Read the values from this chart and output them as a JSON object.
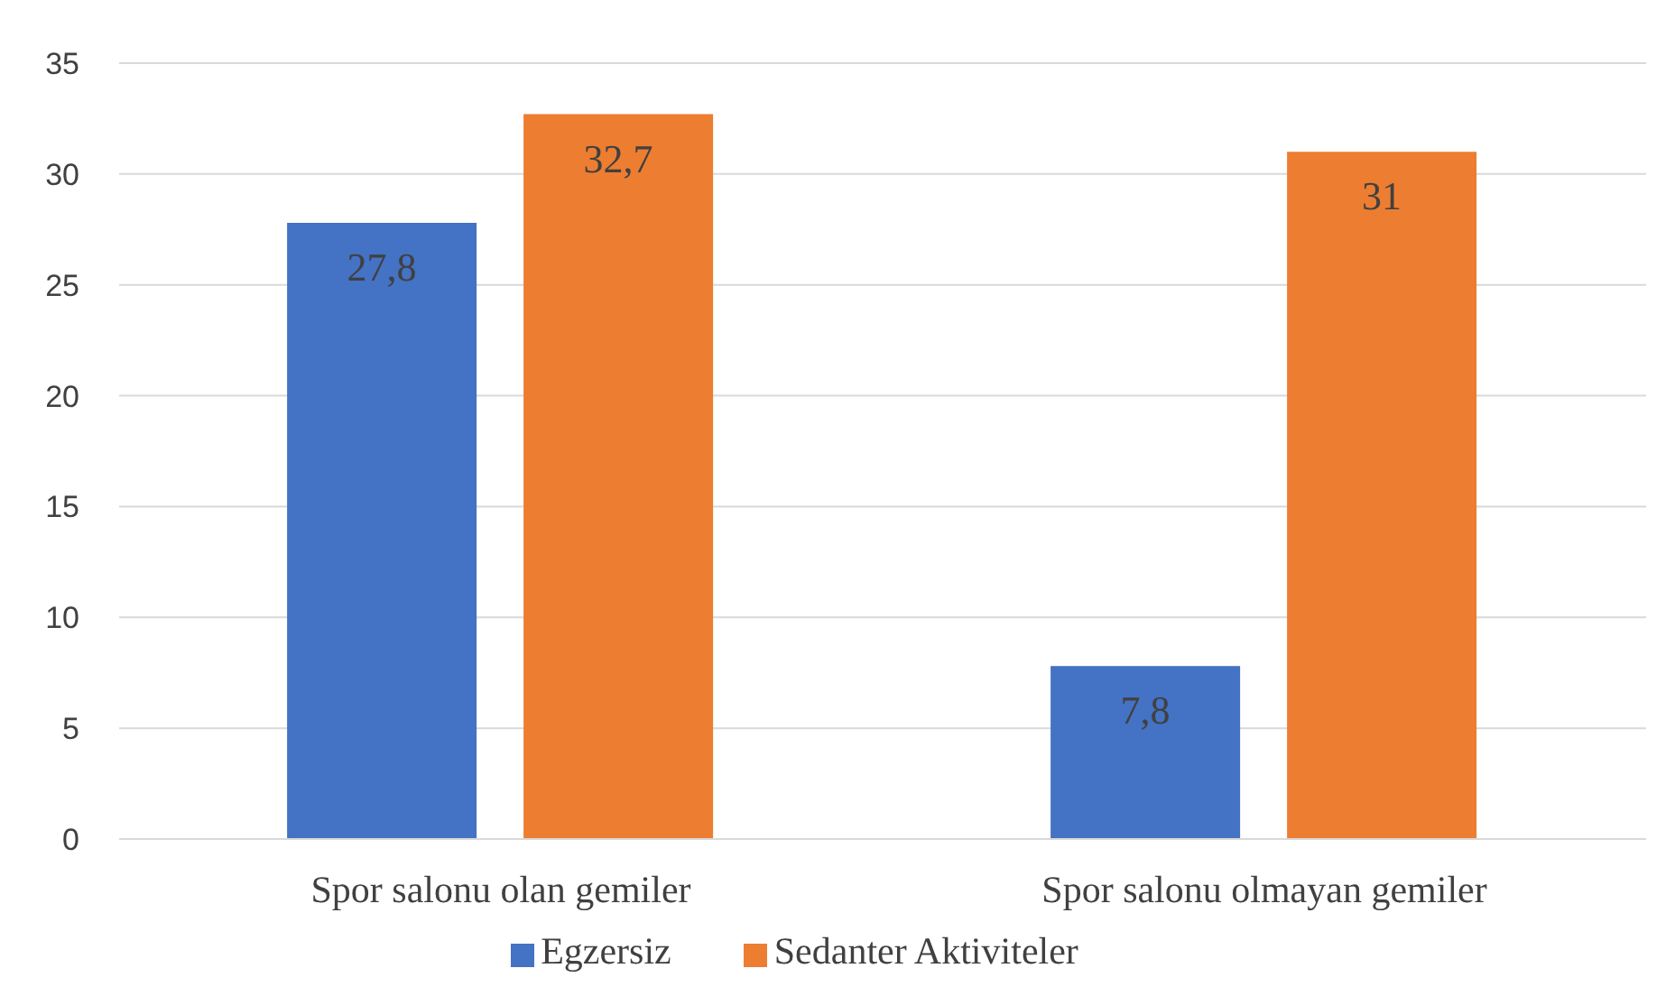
{
  "chart_data": {
    "type": "bar",
    "categories": [
      "Spor salonu olan gemiler",
      "Spor salonu olmayan gemiler"
    ],
    "series": [
      {
        "name": "Egzersiz",
        "color": "#4472c4",
        "values": [
          27.8,
          7.8
        ],
        "value_labels": [
          "27,8",
          "7,8"
        ]
      },
      {
        "name": "Sedanter Aktiviteler",
        "color": "#ed7d31",
        "values": [
          32.7,
          31
        ],
        "value_labels": [
          "32,7",
          "31"
        ]
      }
    ],
    "ylim": [
      0,
      35
    ],
    "yticks": [
      0,
      5,
      10,
      15,
      20,
      25,
      30,
      35
    ],
    "grid": "y",
    "legend": "bottom"
  }
}
